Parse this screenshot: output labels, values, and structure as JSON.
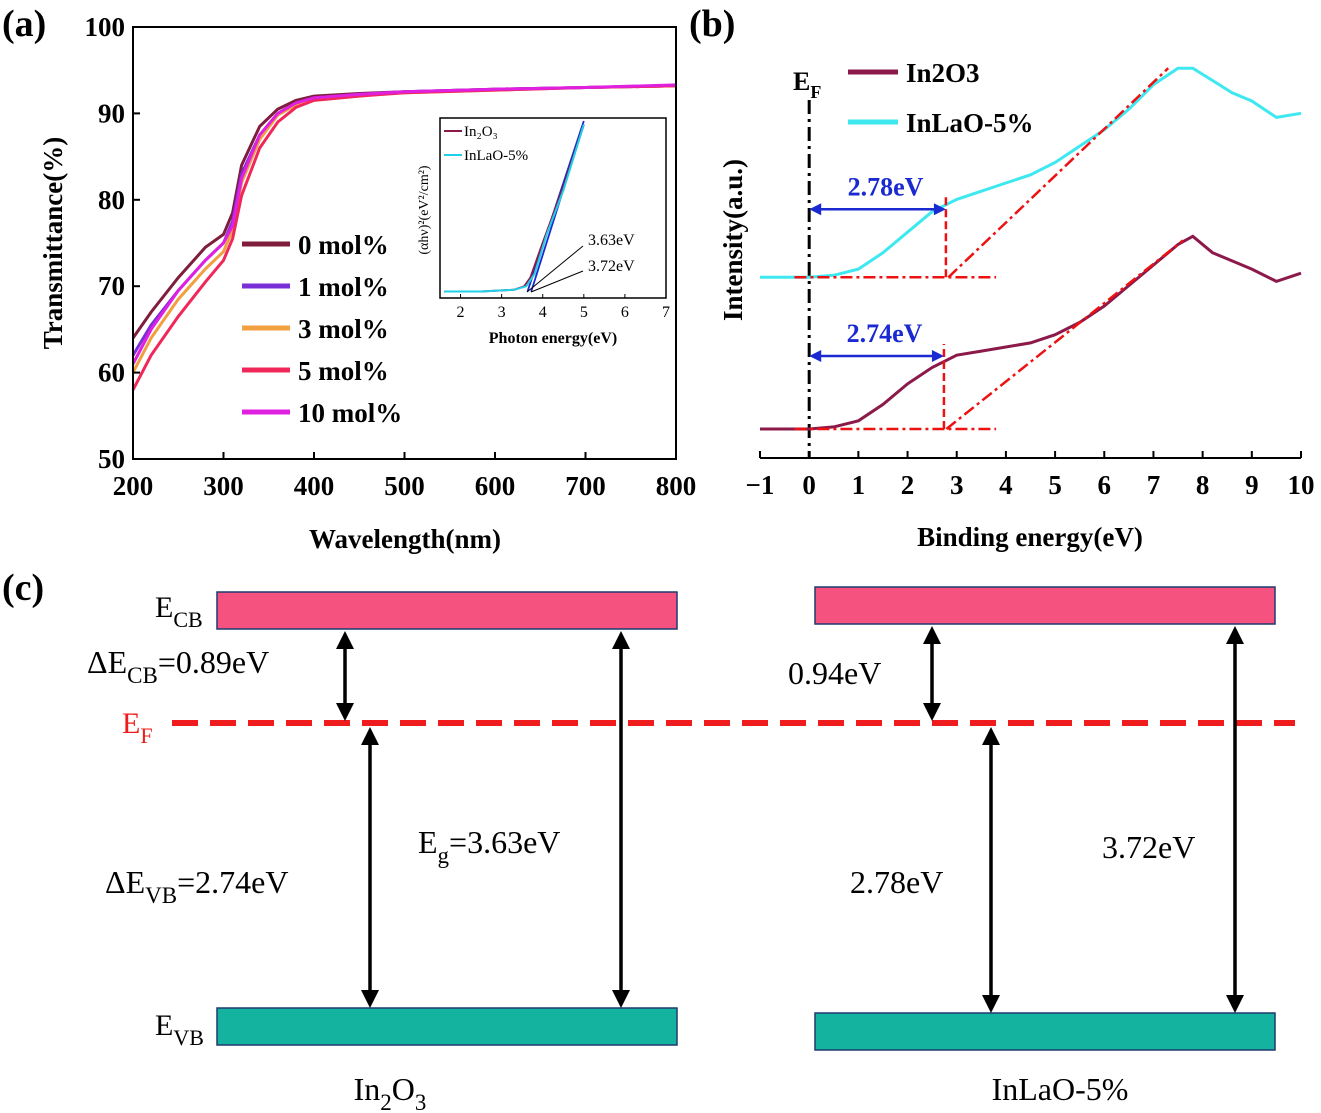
{
  "panels": {
    "a": {
      "label": "(a)",
      "chart_data": {
        "type": "line",
        "xlabel": "Wavelength(nm)",
        "ylabel": "Transmittance(%)",
        "xlim": [
          200,
          800
        ],
        "ylim": [
          50,
          100
        ],
        "x_ticks": [
          200,
          300,
          400,
          500,
          600,
          700,
          800
        ],
        "y_ticks": [
          50,
          60,
          70,
          80,
          90,
          100
        ],
        "legend_position": "middle-left",
        "series": [
          {
            "name": "0 mol%",
            "color": "#7f1d3c",
            "x": [
              200,
              220,
              250,
              280,
              300,
              310,
              320,
              340,
              360,
              380,
              400,
              450,
              500,
              600,
              700,
              800
            ],
            "y": [
              64,
              67,
              71,
              74.5,
              76,
              78.5,
              84,
              88.5,
              90.5,
              91.5,
              92,
              92.3,
              92.5,
              92.8,
              93,
              93.2
            ]
          },
          {
            "name": "1 mol%",
            "color": "#7b2fd6",
            "x": [
              200,
              220,
              250,
              280,
              300,
              310,
              320,
              340,
              360,
              380,
              400,
              450,
              500,
              600,
              700,
              800
            ],
            "y": [
              62,
              65.5,
              69.5,
              73,
              75,
              77.5,
              83,
              87.5,
              90,
              91.2,
              91.8,
              92.2,
              92.5,
              92.8,
              93,
              93.2
            ]
          },
          {
            "name": "3 mol%",
            "color": "#f0a040",
            "x": [
              200,
              220,
              250,
              280,
              300,
              310,
              320,
              340,
              360,
              380,
              400,
              450,
              500,
              600,
              700,
              800
            ],
            "y": [
              60,
              64,
              68.5,
              72,
              74,
              76.5,
              82,
              87,
              89.8,
              91,
              91.7,
              92.1,
              92.4,
              92.7,
              93,
              93.2
            ]
          },
          {
            "name": "5 mol%",
            "color": "#f0285a",
            "x": [
              200,
              220,
              250,
              280,
              300,
              310,
              320,
              340,
              360,
              380,
              400,
              450,
              500,
              600,
              700,
              800
            ],
            "y": [
              58,
              62,
              66.5,
              70.5,
              73,
              75.5,
              80.5,
              86,
              89,
              90.7,
              91.5,
              92,
              92.4,
              92.7,
              93,
              93.2
            ]
          },
          {
            "name": "10 mol%",
            "color": "#e020e0",
            "x": [
              200,
              220,
              250,
              280,
              300,
              310,
              320,
              340,
              360,
              380,
              400,
              450,
              500,
              600,
              700,
              800
            ],
            "y": [
              61,
              65,
              69.5,
              73,
              75,
              77,
              82.5,
              87.5,
              90,
              91.2,
              91.8,
              92.2,
              92.5,
              92.8,
              93,
              93.3
            ]
          }
        ],
        "inset": {
          "type": "line",
          "xlabel": "Photon energy(eV)",
          "ylabel": "(αhν)²(eV²/cm²)",
          "xlim": [
            1.5,
            7
          ],
          "ylim": [
            0,
            1
          ],
          "x_ticks": [
            2,
            3,
            4,
            5,
            6,
            7
          ],
          "series": [
            {
              "name": "In₂O₃",
              "color": "#8b1a4a",
              "x": [
                1.6,
                2.5,
                3.3,
                3.55,
                3.7,
                4.0,
                4.5,
                5.0
              ],
              "y": [
                0.02,
                0.02,
                0.03,
                0.05,
                0.1,
                0.3,
                0.62,
                0.98
              ]
            },
            {
              "name": "InLaO-5%",
              "color": "#20d0e8",
              "x": [
                1.6,
                2.5,
                3.3,
                3.6,
                3.8,
                4.1,
                4.5,
                5.0
              ],
              "y": [
                0.02,
                0.02,
                0.03,
                0.05,
                0.12,
                0.35,
                0.6,
                0.98
              ]
            }
          ],
          "annotations": [
            "3.63eV",
            "3.72eV"
          ]
        }
      }
    },
    "b": {
      "label": "(b)",
      "chart_data": {
        "type": "line",
        "xlabel": "Binding energy(eV)",
        "ylabel": "Intensity(a.u.)",
        "xlim": [
          -1,
          10
        ],
        "x_ticks": [
          -1,
          0,
          1,
          2,
          3,
          4,
          5,
          6,
          7,
          8,
          9,
          10
        ],
        "ylim": [
          0,
          1
        ],
        "fermi_label": "E",
        "fermi_label_sub": "F",
        "legend_position": "top-left",
        "series": [
          {
            "name": "In2O3",
            "color": "#8b1a4a",
            "x": [
              -1,
              0,
              0.5,
              1,
              1.5,
              2,
              2.5,
              3,
              3.5,
              4,
              4.5,
              5,
              5.5,
              6,
              6.5,
              7,
              7.5,
              7.8,
              8.2,
              8.6,
              9,
              9.5,
              10
            ],
            "y": [
              0.1,
              0.1,
              0.105,
              0.12,
              0.16,
              0.21,
              0.25,
              0.28,
              0.29,
              0.3,
              0.31,
              0.33,
              0.36,
              0.4,
              0.45,
              0.5,
              0.55,
              0.57,
              0.53,
              0.51,
              0.49,
              0.46,
              0.48
            ]
          },
          {
            "name": "InLaO-5%",
            "color": "#3ee8f0",
            "x": [
              -1,
              0,
              0.5,
              1,
              1.5,
              2,
              2.5,
              3,
              3.5,
              4,
              4.5,
              5,
              5.5,
              6,
              6.5,
              7,
              7.5,
              7.8,
              8.2,
              8.6,
              9,
              9.5,
              10
            ],
            "y": [
              0.47,
              0.47,
              0.475,
              0.49,
              0.53,
              0.58,
              0.63,
              0.66,
              0.68,
              0.7,
              0.72,
              0.75,
              0.79,
              0.83,
              0.88,
              0.94,
              0.98,
              0.98,
              0.95,
              0.92,
              0.9,
              0.86,
              0.87
            ]
          }
        ],
        "annotations": [
          {
            "text": "2.78eV",
            "series": "InLaO-5%",
            "value": 2.78
          },
          {
            "text": "2.74eV",
            "series": "In2O3",
            "value": 2.74
          }
        ]
      }
    },
    "c": {
      "label": "(c)",
      "ecb_main": "E",
      "ecb_sub": "CB",
      "evb_main": "E",
      "evb_sub": "VB",
      "ef_main": "E",
      "ef_sub": "F",
      "left": {
        "name_parts": [
          "In",
          "2",
          "O",
          "3"
        ],
        "decb_prefix": "ΔE",
        "decb_sub": "CB",
        "decb_value": "=0.89eV",
        "devb_prefix": "ΔE",
        "devb_sub": "VB",
        "devb_value": "=2.74eV",
        "eg_prefix": "E",
        "eg_sub": "g",
        "eg_value": "=3.63eV"
      },
      "right": {
        "name": "InLaO-5%",
        "decb": "0.94eV",
        "devb": "2.78eV",
        "eg": "3.72eV"
      },
      "colors": {
        "cb": "#f5527f",
        "vb": "#14b3a0",
        "ef": "#ee1c1c"
      }
    }
  }
}
